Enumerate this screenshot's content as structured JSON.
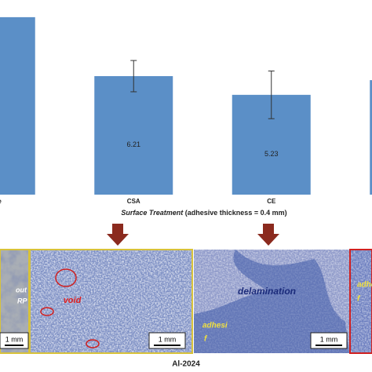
{
  "chart_data": {
    "type": "bar",
    "categories": [
      "one",
      "CSA",
      "CE",
      null
    ],
    "values": [
      9.3,
      6.21,
      5.23,
      6.0
    ],
    "value_labels": [
      null,
      "6.21",
      "5.23",
      null
    ],
    "errors": [
      null,
      0.82,
      1.25,
      null
    ],
    "color": "#5b8fc7",
    "ylim": [
      0,
      10.2
    ],
    "xlabel_italic": "Surface Treatment",
    "xlabel": "(adhesive thickness = 0.4 mm)"
  },
  "micrographs": {
    "panels": [
      {
        "labels": [
          "out",
          "RP"
        ],
        "scale": "1 mm"
      },
      {
        "labels": [
          "void"
        ],
        "scale": "1 mm"
      },
      {
        "labels": [
          "delamination",
          "adhesi",
          "f"
        ],
        "scale": "1 mm"
      },
      {
        "labels": [
          "adhesi",
          "f"
        ]
      }
    ],
    "caption": "Al-2024"
  }
}
